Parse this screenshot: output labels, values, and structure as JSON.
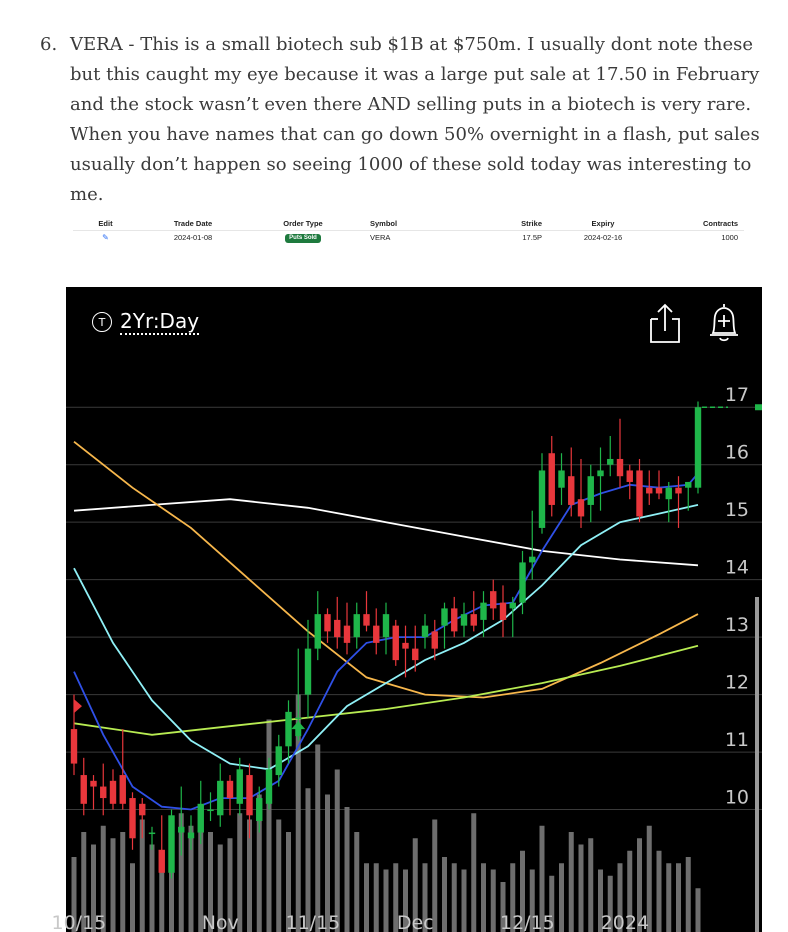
{
  "article": {
    "number": "6.",
    "text": "VERA - This is a small biotech sub $1B at $750m. I usually dont note these but this caught my eye because it was a large put sale at 17.50 in February and the stock wasn’t even there AND selling puts in a biotech is very rare. When you have names that can go down 50% overnight in a flash, put sales usually don’t happen so seeing 1000 of these sold today was interesting to me."
  },
  "trade_table": {
    "headers": [
      "Edit",
      "Trade Date",
      "Order Type",
      "Symbol",
      "Strike",
      "Expiry",
      "Contracts"
    ],
    "row": {
      "edit_icon": "pencil-icon",
      "trade_date": "2024-01-08",
      "order_type": "Puts Sold",
      "symbol": "VERA",
      "strike": "17.5P",
      "expiry": "2024-02-16",
      "contracts": "1000"
    }
  },
  "chart_header": {
    "timeframe_icon": "T",
    "timeframe": "2Yr:Day",
    "share_icon": "share-icon",
    "alert_icon": "alert-bell-icon"
  },
  "chart_data": {
    "type": "candlestick",
    "ylim": [
      8.2,
      17.3
    ],
    "yticks": [
      10,
      11,
      12,
      13,
      14,
      15,
      16,
      17
    ],
    "x_tick_labels": [
      "10/15",
      "Nov",
      "11/15",
      "Dec",
      "12/15",
      "2024"
    ],
    "x_tick_index": [
      0.5,
      15,
      24.5,
      35,
      46.5,
      56.5
    ],
    "grid": true,
    "colors": {
      "up": "#1fb64a",
      "down": "#e8373c",
      "volume": "#6e6e6e",
      "ema_fast": "#2f50e6",
      "ema_mid": "#8ff0f6",
      "sma_a": "#f7b74c",
      "sma_b": "#b8ec52",
      "sma_c": "#ffffff",
      "grid": "#3a3a3a",
      "tick_text": "#c8c8c8"
    },
    "candles": [
      {
        "o": 11.4,
        "h": 12.0,
        "l": 10.6,
        "c": 10.8
      },
      {
        "o": 10.6,
        "h": 10.9,
        "l": 9.9,
        "c": 10.1
      },
      {
        "o": 10.5,
        "h": 10.6,
        "l": 10.0,
        "c": 10.4
      },
      {
        "o": 10.4,
        "h": 10.8,
        "l": 9.9,
        "c": 10.2
      },
      {
        "o": 10.5,
        "h": 10.7,
        "l": 10.0,
        "c": 10.1
      },
      {
        "o": 10.6,
        "h": 11.4,
        "l": 10.0,
        "c": 10.1
      },
      {
        "o": 10.2,
        "h": 10.3,
        "l": 9.3,
        "c": 9.5
      },
      {
        "o": 10.1,
        "h": 10.2,
        "l": 9.5,
        "c": 9.9
      },
      {
        "o": 9.6,
        "h": 9.7,
        "l": 9.3,
        "c": 9.6
      },
      {
        "o": 9.3,
        "h": 9.9,
        "l": 8.9,
        "c": 8.9
      },
      {
        "o": 8.9,
        "h": 10.0,
        "l": 8.8,
        "c": 9.9
      },
      {
        "o": 9.6,
        "h": 10.4,
        "l": 9.2,
        "c": 9.7
      },
      {
        "o": 9.5,
        "h": 9.9,
        "l": 9.3,
        "c": 9.6
      },
      {
        "o": 9.6,
        "h": 10.5,
        "l": 9.4,
        "c": 10.1
      },
      {
        "o": 10.0,
        "h": 10.3,
        "l": 9.8,
        "c": 10.0
      },
      {
        "o": 9.9,
        "h": 10.8,
        "l": 9.7,
        "c": 10.5
      },
      {
        "o": 10.5,
        "h": 10.6,
        "l": 9.9,
        "c": 10.2
      },
      {
        "o": 10.1,
        "h": 10.9,
        "l": 9.9,
        "c": 10.7
      },
      {
        "o": 10.6,
        "h": 10.8,
        "l": 9.5,
        "c": 9.9
      },
      {
        "o": 9.8,
        "h": 10.4,
        "l": 9.6,
        "c": 10.2
      },
      {
        "o": 10.1,
        "h": 10.9,
        "l": 10.0,
        "c": 10.7
      },
      {
        "o": 10.6,
        "h": 11.3,
        "l": 10.4,
        "c": 11.1
      },
      {
        "o": 11.1,
        "h": 11.9,
        "l": 10.8,
        "c": 11.7
      },
      {
        "o": 11.6,
        "h": 12.8,
        "l": 11.2,
        "c": 11.6
      },
      {
        "o": 12.0,
        "h": 13.3,
        "l": 11.6,
        "c": 12.8
      },
      {
        "o": 12.8,
        "h": 13.8,
        "l": 12.6,
        "c": 13.4
      },
      {
        "o": 13.4,
        "h": 13.5,
        "l": 12.9,
        "c": 13.1
      },
      {
        "o": 13.3,
        "h": 13.7,
        "l": 12.8,
        "c": 13.0
      },
      {
        "o": 13.2,
        "h": 13.6,
        "l": 12.7,
        "c": 12.9
      },
      {
        "o": 13.0,
        "h": 13.6,
        "l": 12.8,
        "c": 13.4
      },
      {
        "o": 13.4,
        "h": 13.8,
        "l": 13.1,
        "c": 13.2
      },
      {
        "o": 13.2,
        "h": 13.5,
        "l": 12.7,
        "c": 12.9
      },
      {
        "o": 13.0,
        "h": 13.6,
        "l": 12.7,
        "c": 13.4
      },
      {
        "o": 13.2,
        "h": 13.3,
        "l": 12.5,
        "c": 12.6
      },
      {
        "o": 12.9,
        "h": 13.2,
        "l": 12.3,
        "c": 12.8
      },
      {
        "o": 12.8,
        "h": 13.2,
        "l": 12.4,
        "c": 12.6
      },
      {
        "o": 13.0,
        "h": 13.4,
        "l": 12.8,
        "c": 13.2
      },
      {
        "o": 13.1,
        "h": 13.3,
        "l": 12.6,
        "c": 12.8
      },
      {
        "o": 13.2,
        "h": 13.6,
        "l": 12.8,
        "c": 13.5
      },
      {
        "o": 13.5,
        "h": 13.7,
        "l": 13.0,
        "c": 13.1
      },
      {
        "o": 13.2,
        "h": 13.6,
        "l": 13.0,
        "c": 13.4
      },
      {
        "o": 13.4,
        "h": 13.8,
        "l": 13.1,
        "c": 13.2
      },
      {
        "o": 13.3,
        "h": 13.8,
        "l": 13.0,
        "c": 13.6
      },
      {
        "o": 13.8,
        "h": 14.0,
        "l": 13.3,
        "c": 13.5
      },
      {
        "o": 13.6,
        "h": 13.9,
        "l": 13.0,
        "c": 13.3
      },
      {
        "o": 13.5,
        "h": 13.7,
        "l": 13.0,
        "c": 13.6
      },
      {
        "o": 13.6,
        "h": 14.5,
        "l": 13.4,
        "c": 14.3
      },
      {
        "o": 14.3,
        "h": 15.2,
        "l": 14.0,
        "c": 14.4
      },
      {
        "o": 14.9,
        "h": 16.2,
        "l": 14.8,
        "c": 15.9
      },
      {
        "o": 16.2,
        "h": 16.5,
        "l": 15.1,
        "c": 15.3
      },
      {
        "o": 15.6,
        "h": 16.2,
        "l": 15.3,
        "c": 15.9
      },
      {
        "o": 15.8,
        "h": 16.3,
        "l": 15.1,
        "c": 15.3
      },
      {
        "o": 15.4,
        "h": 16.1,
        "l": 14.9,
        "c": 15.1
      },
      {
        "o": 15.3,
        "h": 16.0,
        "l": 15.0,
        "c": 15.8
      },
      {
        "o": 15.8,
        "h": 16.3,
        "l": 15.2,
        "c": 15.9
      },
      {
        "o": 16.0,
        "h": 16.5,
        "l": 15.8,
        "c": 16.1
      },
      {
        "o": 16.1,
        "h": 16.8,
        "l": 15.6,
        "c": 15.8
      },
      {
        "o": 15.9,
        "h": 16.0,
        "l": 15.4,
        "c": 15.7
      },
      {
        "o": 15.9,
        "h": 16.1,
        "l": 15.0,
        "c": 15.1
      },
      {
        "o": 15.6,
        "h": 15.9,
        "l": 15.3,
        "c": 15.5
      },
      {
        "o": 15.6,
        "h": 15.9,
        "l": 15.4,
        "c": 15.5
      },
      {
        "o": 15.4,
        "h": 15.7,
        "l": 15.0,
        "c": 15.6
      },
      {
        "o": 15.6,
        "h": 15.8,
        "l": 14.9,
        "c": 15.5
      },
      {
        "o": 15.6,
        "h": 15.7,
        "l": 15.2,
        "c": 15.7
      },
      {
        "o": 15.6,
        "h": 17.1,
        "l": 15.5,
        "c": 17.0
      }
    ],
    "volume": [
      0.6,
      0.8,
      0.7,
      0.85,
      0.75,
      0.8,
      0.55,
      0.9,
      0.7,
      0.65,
      0.85,
      0.95,
      0.85,
      0.8,
      0.8,
      0.7,
      0.75,
      0.95,
      0.9,
      1.1,
      1.7,
      0.9,
      0.8,
      1.9,
      1.15,
      1.5,
      1.1,
      1.3,
      1.0,
      0.8,
      0.55,
      0.55,
      0.5,
      0.55,
      0.5,
      0.75,
      0.55,
      0.9,
      0.6,
      0.55,
      0.5,
      0.95,
      0.55,
      0.5,
      0.4,
      0.55,
      0.65,
      0.5,
      0.85,
      0.45,
      0.55,
      0.8,
      0.7,
      0.75,
      0.5,
      0.45,
      0.55,
      0.65,
      0.75,
      0.85,
      0.65,
      0.55,
      0.55,
      0.6,
      0.35
    ],
    "volume_ylim": [
      0,
      2.4
    ],
    "ma_lines": [
      {
        "key": "sma_c",
        "values": [
          [
            0,
            15.2
          ],
          [
            8,
            15.3
          ],
          [
            16,
            15.4
          ],
          [
            24,
            15.25
          ],
          [
            32,
            15.0
          ],
          [
            40,
            14.75
          ],
          [
            48,
            14.5
          ],
          [
            56,
            14.35
          ],
          [
            64,
            14.25
          ]
        ]
      },
      {
        "key": "sma_a",
        "values": [
          [
            0,
            16.4
          ],
          [
            6,
            15.6
          ],
          [
            12,
            14.9
          ],
          [
            18,
            14.0
          ],
          [
            24,
            13.1
          ],
          [
            30,
            12.3
          ],
          [
            36,
            12.0
          ],
          [
            42,
            11.95
          ],
          [
            48,
            12.1
          ],
          [
            54,
            12.55
          ],
          [
            60,
            13.05
          ],
          [
            64,
            13.4
          ]
        ]
      },
      {
        "key": "sma_b",
        "values": [
          [
            0,
            11.5
          ],
          [
            8,
            11.3
          ],
          [
            16,
            11.45
          ],
          [
            24,
            11.6
          ],
          [
            32,
            11.75
          ],
          [
            40,
            11.95
          ],
          [
            48,
            12.2
          ],
          [
            56,
            12.5
          ],
          [
            64,
            12.85
          ]
        ]
      },
      {
        "key": "ema_mid",
        "values": [
          [
            0,
            14.2
          ],
          [
            4,
            12.9
          ],
          [
            8,
            11.9
          ],
          [
            12,
            11.2
          ],
          [
            16,
            10.8
          ],
          [
            20,
            10.7
          ],
          [
            24,
            11.1
          ],
          [
            28,
            11.8
          ],
          [
            32,
            12.2
          ],
          [
            36,
            12.6
          ],
          [
            40,
            12.9
          ],
          [
            44,
            13.3
          ],
          [
            48,
            13.9
          ],
          [
            52,
            14.6
          ],
          [
            56,
            15.0
          ],
          [
            60,
            15.15
          ],
          [
            64,
            15.3
          ]
        ]
      },
      {
        "key": "ema_fast",
        "values": [
          [
            0,
            12.4
          ],
          [
            3,
            11.3
          ],
          [
            6,
            10.4
          ],
          [
            9,
            10.05
          ],
          [
            12,
            10.0
          ],
          [
            15,
            10.2
          ],
          [
            18,
            10.2
          ],
          [
            21,
            10.5
          ],
          [
            24,
            11.4
          ],
          [
            27,
            12.4
          ],
          [
            30,
            12.9
          ],
          [
            33,
            13.0
          ],
          [
            36,
            13.0
          ],
          [
            39,
            13.3
          ],
          [
            42,
            13.55
          ],
          [
            45,
            13.6
          ],
          [
            48,
            14.5
          ],
          [
            51,
            15.3
          ],
          [
            54,
            15.5
          ],
          [
            57,
            15.65
          ],
          [
            60,
            15.6
          ],
          [
            63,
            15.65
          ],
          [
            64,
            15.85
          ]
        ]
      }
    ],
    "markers": [
      {
        "type": "arrow-up",
        "index": 23,
        "value": 11.4,
        "color": "#1fb64a"
      },
      {
        "type": "arrow-right",
        "index": 0,
        "value": 11.8,
        "color": "#e8373c"
      }
    ]
  }
}
